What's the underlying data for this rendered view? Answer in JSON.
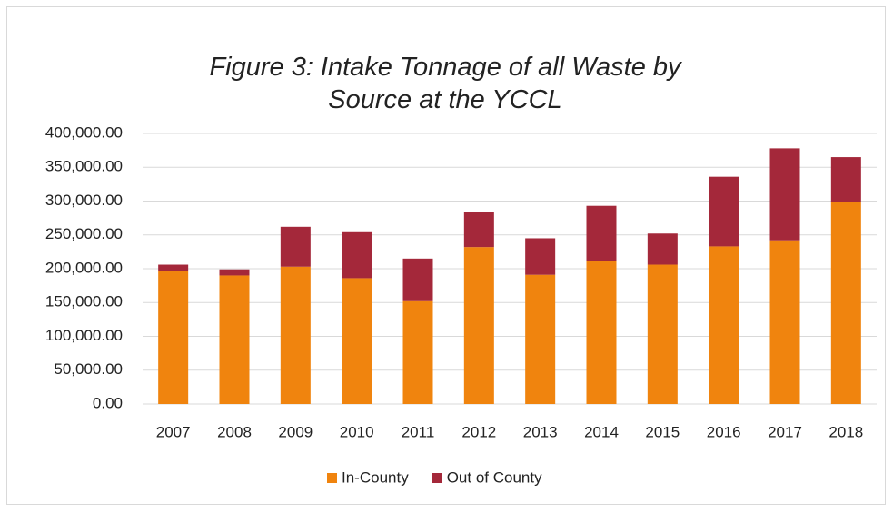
{
  "chart_data": {
    "type": "stacked_bar",
    "title": "Figure 3: Intake Tonnage of all Waste by Source at the YCCL",
    "categories": [
      "2007",
      "2008",
      "2009",
      "2010",
      "2011",
      "2012",
      "2013",
      "2014",
      "2015",
      "2016",
      "2017",
      "2018"
    ],
    "series": [
      {
        "name": "In-County",
        "color": "#f0840e",
        "values": [
          196000,
          190000,
          203000,
          186000,
          152000,
          232000,
          191000,
          212000,
          206000,
          233000,
          242000,
          299000
        ]
      },
      {
        "name": "Out of County",
        "color": "#a4283a",
        "values": [
          10000,
          9000,
          59000,
          68000,
          63000,
          52000,
          54000,
          81000,
          46000,
          103000,
          136000,
          66000
        ]
      }
    ],
    "ylim": [
      0,
      400000
    ],
    "yticks": [
      {
        "value": 0,
        "label": "0.00"
      },
      {
        "value": 50000,
        "label": "50,000.00"
      },
      {
        "value": 100000,
        "label": "100,000.00"
      },
      {
        "value": 150000,
        "label": "150,000.00"
      },
      {
        "value": 200000,
        "label": "200,000.00"
      },
      {
        "value": 250000,
        "label": "250,000.00"
      },
      {
        "value": 300000,
        "label": "300,000.00"
      },
      {
        "value": 350000,
        "label": "350,000.00"
      },
      {
        "value": 400000,
        "label": "400,000.00"
      }
    ],
    "grid": true,
    "legend": "bottom"
  }
}
